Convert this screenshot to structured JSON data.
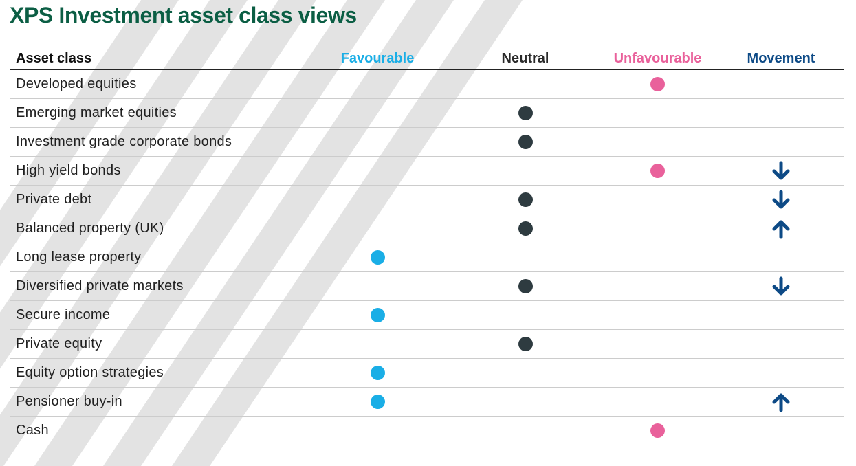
{
  "title": "XPS Investment asset class views",
  "colors": {
    "title": "#0b5e44",
    "favourable": "#1aaee6",
    "neutral": "#2e3b40",
    "unfavourable": "#e9619b",
    "movement": "#0d4a86",
    "background_stripe": "#e3e3e3"
  },
  "header": {
    "asset_class": "Asset class",
    "favourable": "Favourable",
    "neutral": "Neutral",
    "unfavourable": "Unfavourable",
    "movement": "Movement"
  },
  "rows": [
    {
      "asset": "Developed equities",
      "view": "unfavourable",
      "movement": ""
    },
    {
      "asset": "Emerging market equities",
      "view": "neutral",
      "movement": ""
    },
    {
      "asset": "Investment grade corporate bonds",
      "view": "neutral",
      "movement": ""
    },
    {
      "asset": "High yield bonds",
      "view": "unfavourable",
      "movement": "down"
    },
    {
      "asset": "Private debt",
      "view": "neutral",
      "movement": "down"
    },
    {
      "asset": "Balanced property (UK)",
      "view": "neutral",
      "movement": "up"
    },
    {
      "asset": "Long lease property",
      "view": "favourable",
      "movement": ""
    },
    {
      "asset": "Diversified private markets",
      "view": "neutral",
      "movement": "down"
    },
    {
      "asset": "Secure income",
      "view": "favourable",
      "movement": ""
    },
    {
      "asset": "Private equity",
      "view": "neutral",
      "movement": ""
    },
    {
      "asset": "Equity option strategies",
      "view": "favourable",
      "movement": ""
    },
    {
      "asset": "Pensioner buy-in",
      "view": "favourable",
      "movement": "up"
    },
    {
      "asset": "Cash",
      "view": "unfavourable",
      "movement": ""
    }
  ]
}
